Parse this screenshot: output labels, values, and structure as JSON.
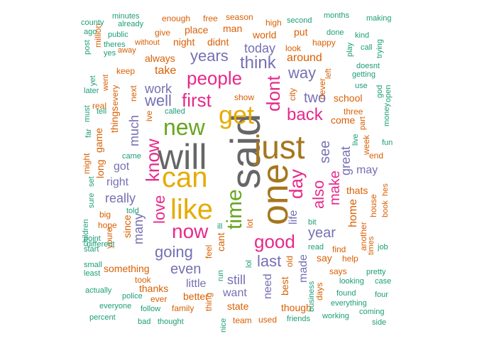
{
  "palette": {
    "teal": "#1b9e77",
    "orange": "#d95f02",
    "purple": "#7570b3",
    "magenta": "#e7298a",
    "green": "#66a61e",
    "gold": "#e6ab02",
    "brown": "#a6761d",
    "gray": "#666666"
  },
  "words": [
    {
      "text": "will",
      "color": "gray"
    },
    {
      "text": "said",
      "color": "gray"
    },
    {
      "text": "just",
      "color": "brown"
    },
    {
      "text": "one",
      "color": "brown"
    },
    {
      "text": "can",
      "color": "gold"
    },
    {
      "text": "like",
      "color": "gold"
    },
    {
      "text": "get",
      "color": "gold"
    },
    {
      "text": "new",
      "color": "green"
    },
    {
      "text": "time",
      "color": "green"
    },
    {
      "text": "people",
      "color": "magenta"
    },
    {
      "text": "now",
      "color": "magenta"
    },
    {
      "text": "know",
      "color": "magenta"
    },
    {
      "text": "dont",
      "color": "magenta"
    },
    {
      "text": "day",
      "color": "magenta"
    },
    {
      "text": "first",
      "color": "magenta"
    },
    {
      "text": "good",
      "color": "magenta"
    },
    {
      "text": "love",
      "color": "magenta"
    },
    {
      "text": "also",
      "color": "magenta"
    },
    {
      "text": "back",
      "color": "magenta"
    },
    {
      "text": "make",
      "color": "magenta"
    },
    {
      "text": "think",
      "color": "purple"
    },
    {
      "text": "years",
      "color": "purple"
    },
    {
      "text": "way",
      "color": "purple"
    },
    {
      "text": "well",
      "color": "purple"
    },
    {
      "text": "two",
      "color": "purple"
    },
    {
      "text": "see",
      "color": "purple"
    },
    {
      "text": "going",
      "color": "purple"
    },
    {
      "text": "even",
      "color": "purple"
    },
    {
      "text": "last",
      "color": "purple"
    },
    {
      "text": "year",
      "color": "purple"
    },
    {
      "text": "really",
      "color": "purple"
    },
    {
      "text": "much",
      "color": "purple"
    },
    {
      "text": "work",
      "color": "purple"
    },
    {
      "text": "great",
      "color": "purple"
    },
    {
      "text": "many",
      "color": "purple"
    },
    {
      "text": "may",
      "color": "purple"
    },
    {
      "text": "today",
      "color": "purple"
    },
    {
      "text": "right",
      "color": "purple"
    },
    {
      "text": "got",
      "color": "purple"
    },
    {
      "text": "little",
      "color": "purple"
    },
    {
      "text": "still",
      "color": "purple"
    },
    {
      "text": "want",
      "color": "purple"
    },
    {
      "text": "need",
      "color": "purple"
    },
    {
      "text": "made",
      "color": "purple"
    },
    {
      "text": "life",
      "color": "purple"
    },
    {
      "text": "take",
      "color": "orange"
    },
    {
      "text": "always",
      "color": "orange"
    },
    {
      "text": "night",
      "color": "orange"
    },
    {
      "text": "around",
      "color": "orange"
    },
    {
      "text": "come",
      "color": "orange"
    },
    {
      "text": "school",
      "color": "orange"
    },
    {
      "text": "home",
      "color": "orange"
    },
    {
      "text": "thats",
      "color": "orange"
    },
    {
      "text": "say",
      "color": "orange"
    },
    {
      "text": "something",
      "color": "orange"
    },
    {
      "text": "thanks",
      "color": "orange"
    },
    {
      "text": "better",
      "color": "orange"
    },
    {
      "text": "family",
      "color": "orange"
    },
    {
      "text": "state",
      "color": "orange"
    },
    {
      "text": "though",
      "color": "orange"
    },
    {
      "text": "best",
      "color": "orange"
    },
    {
      "text": "find",
      "color": "orange"
    },
    {
      "text": "things",
      "color": "orange"
    },
    {
      "text": "game",
      "color": "orange"
    },
    {
      "text": "long",
      "color": "orange"
    },
    {
      "text": "since",
      "color": "orange"
    },
    {
      "text": "cant",
      "color": "orange"
    },
    {
      "text": "another",
      "color": "orange"
    },
    {
      "text": "week",
      "color": "orange"
    },
    {
      "text": "every",
      "color": "orange"
    },
    {
      "text": "next",
      "color": "orange"
    },
    {
      "text": "big",
      "color": "orange"
    },
    {
      "text": "youre",
      "color": "orange"
    },
    {
      "text": "world",
      "color": "orange"
    },
    {
      "text": "didnt",
      "color": "orange"
    },
    {
      "text": "man",
      "color": "orange"
    },
    {
      "text": "place",
      "color": "orange"
    },
    {
      "text": "enough",
      "color": "orange"
    },
    {
      "text": "free",
      "color": "orange"
    },
    {
      "text": "season",
      "color": "orange"
    },
    {
      "text": "high",
      "color": "orange"
    },
    {
      "text": "put",
      "color": "orange"
    },
    {
      "text": "look",
      "color": "orange"
    },
    {
      "text": "happy",
      "color": "orange"
    },
    {
      "text": "give",
      "color": "orange"
    },
    {
      "text": "without",
      "color": "orange"
    },
    {
      "text": "keep",
      "color": "orange"
    },
    {
      "text": "show",
      "color": "orange"
    },
    {
      "text": "never",
      "color": "orange"
    },
    {
      "text": "left",
      "color": "orange"
    },
    {
      "text": "city",
      "color": "orange"
    },
    {
      "text": "three",
      "color": "orange"
    },
    {
      "text": "part",
      "color": "orange"
    },
    {
      "text": "end",
      "color": "orange"
    },
    {
      "text": "house",
      "color": "orange"
    },
    {
      "text": "help",
      "color": "orange"
    },
    {
      "text": "says",
      "color": "orange"
    },
    {
      "text": "days",
      "color": "orange"
    },
    {
      "text": "old",
      "color": "orange"
    },
    {
      "text": "feel",
      "color": "orange"
    },
    {
      "text": "thing",
      "color": "orange"
    },
    {
      "text": "ever",
      "color": "orange"
    },
    {
      "text": "took",
      "color": "orange"
    },
    {
      "text": "team",
      "color": "orange"
    },
    {
      "text": "used",
      "color": "orange"
    },
    {
      "text": "real",
      "color": "orange"
    },
    {
      "text": "might",
      "color": "orange"
    },
    {
      "text": "hope",
      "color": "orange"
    },
    {
      "text": "went",
      "color": "orange"
    },
    {
      "text": "lot",
      "color": "orange"
    },
    {
      "text": "ive",
      "color": "orange"
    },
    {
      "text": "million",
      "color": "orange"
    },
    {
      "text": "times",
      "color": "orange"
    },
    {
      "text": "book",
      "color": "orange"
    },
    {
      "text": "hes",
      "color": "orange"
    },
    {
      "text": "away",
      "color": "orange"
    },
    {
      "text": "county",
      "color": "teal"
    },
    {
      "text": "minutes",
      "color": "teal"
    },
    {
      "text": "already",
      "color": "teal"
    },
    {
      "text": "second",
      "color": "teal"
    },
    {
      "text": "months",
      "color": "teal"
    },
    {
      "text": "making",
      "color": "teal"
    },
    {
      "text": "ago",
      "color": "teal"
    },
    {
      "text": "post",
      "color": "teal"
    },
    {
      "text": "public",
      "color": "teal"
    },
    {
      "text": "theres",
      "color": "teal"
    },
    {
      "text": "yes",
      "color": "teal"
    },
    {
      "text": "done",
      "color": "teal"
    },
    {
      "text": "kind",
      "color": "teal"
    },
    {
      "text": "play",
      "color": "teal"
    },
    {
      "text": "call",
      "color": "teal"
    },
    {
      "text": "trying",
      "color": "teal"
    },
    {
      "text": "doesnt",
      "color": "teal"
    },
    {
      "text": "getting",
      "color": "teal"
    },
    {
      "text": "use",
      "color": "teal"
    },
    {
      "text": "god",
      "color": "teal"
    },
    {
      "text": "open",
      "color": "teal"
    },
    {
      "text": "money",
      "color": "teal"
    },
    {
      "text": "fun",
      "color": "teal"
    },
    {
      "text": "live",
      "color": "teal"
    },
    {
      "text": "yet",
      "color": "teal"
    },
    {
      "text": "later",
      "color": "teal"
    },
    {
      "text": "must",
      "color": "teal"
    },
    {
      "text": "tell",
      "color": "teal"
    },
    {
      "text": "far",
      "color": "teal"
    },
    {
      "text": "called",
      "color": "teal"
    },
    {
      "text": "came",
      "color": "teal"
    },
    {
      "text": "set",
      "color": "teal"
    },
    {
      "text": "sure",
      "color": "teal"
    },
    {
      "text": "told",
      "color": "teal"
    },
    {
      "text": "children",
      "color": "teal"
    },
    {
      "text": "different",
      "color": "teal"
    },
    {
      "text": "point",
      "color": "teal"
    },
    {
      "text": "start",
      "color": "teal"
    },
    {
      "text": "small",
      "color": "teal"
    },
    {
      "text": "least",
      "color": "teal"
    },
    {
      "text": "actually",
      "color": "teal"
    },
    {
      "text": "police",
      "color": "teal"
    },
    {
      "text": "everyone",
      "color": "teal"
    },
    {
      "text": "follow",
      "color": "teal"
    },
    {
      "text": "percent",
      "color": "teal"
    },
    {
      "text": "bad",
      "color": "teal"
    },
    {
      "text": "thought",
      "color": "teal"
    },
    {
      "text": "nice",
      "color": "teal"
    },
    {
      "text": "run",
      "color": "teal"
    },
    {
      "text": "ill",
      "color": "teal"
    },
    {
      "text": "lol",
      "color": "teal"
    },
    {
      "text": "bit",
      "color": "teal"
    },
    {
      "text": "read",
      "color": "teal"
    },
    {
      "text": "business",
      "color": "teal"
    },
    {
      "text": "friends",
      "color": "teal"
    },
    {
      "text": "working",
      "color": "teal"
    },
    {
      "text": "found",
      "color": "teal"
    },
    {
      "text": "everything",
      "color": "teal"
    },
    {
      "text": "looking",
      "color": "teal"
    },
    {
      "text": "pretty",
      "color": "teal"
    },
    {
      "text": "case",
      "color": "teal"
    },
    {
      "text": "four",
      "color": "teal"
    },
    {
      "text": "coming",
      "color": "teal"
    },
    {
      "text": "side",
      "color": "teal"
    },
    {
      "text": "job",
      "color": "teal"
    }
  ]
}
